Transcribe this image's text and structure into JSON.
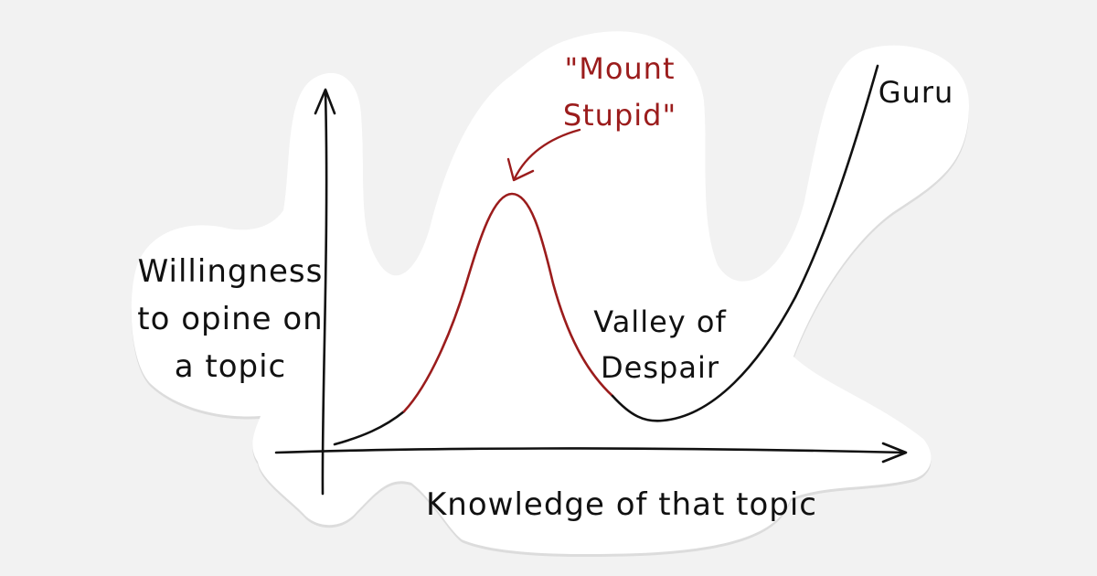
{
  "diagram": {
    "labels": {
      "y_axis": [
        "Willingness",
        "to opine on",
        "a topic"
      ],
      "x_axis": "Knowledge of that topic",
      "peak": [
        "\"Mount",
        "Stupid\""
      ],
      "valley": [
        "Valley of",
        "Despair"
      ],
      "end": "Guru"
    },
    "colors": {
      "background": "#f2f2f2",
      "sticker": "#ffffff",
      "ink": "#111111",
      "accent": "#9b1c1c"
    }
  }
}
